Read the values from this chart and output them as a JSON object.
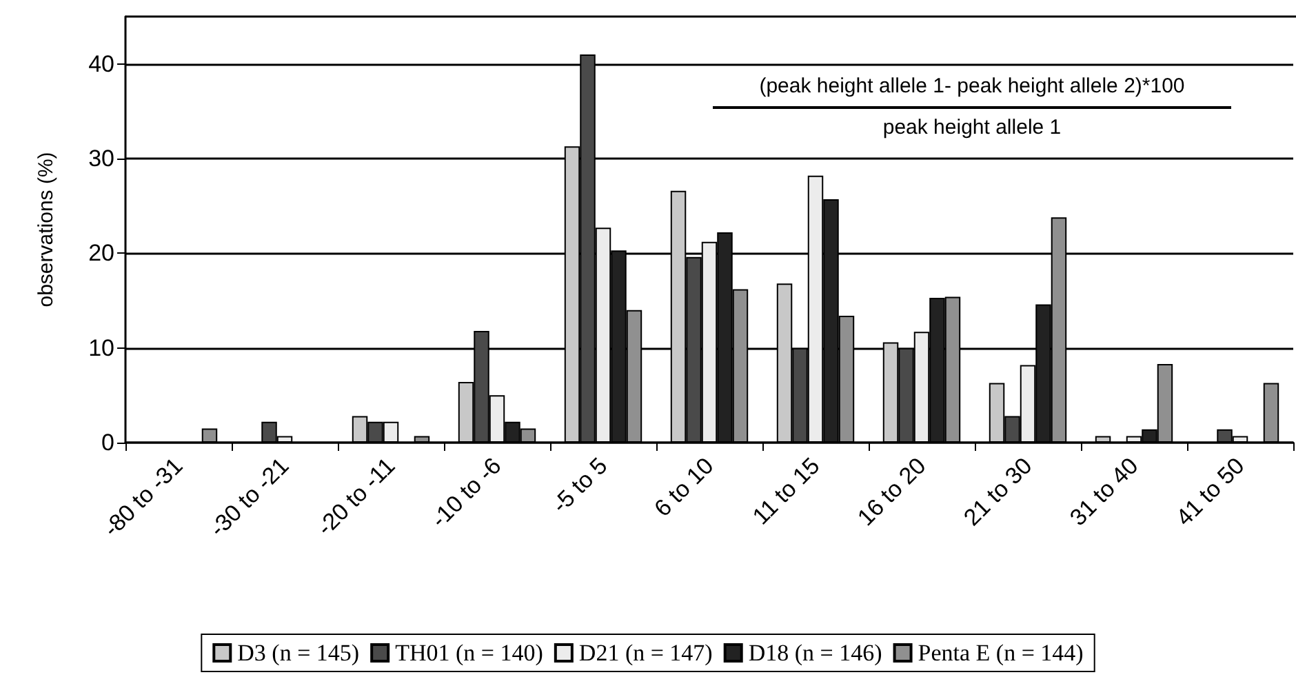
{
  "chart_data": {
    "type": "bar",
    "ylabel": "observations (%)",
    "annotations": [
      "(peak height allele 1- peak height allele 2)*100",
      "peak height allele 1"
    ],
    "categories": [
      "-80 to -31",
      "-30 to -21",
      "-20 to -11",
      "-10 to -6",
      "-5 to 5",
      "6 to 10",
      "11 to 15",
      "16 to 20",
      "21 to 30",
      "31 to 40",
      "41 to 50"
    ],
    "series": [
      {
        "name": "D3 (n = 145)",
        "color": "#c8c8c8",
        "values": [
          0,
          0,
          2.8,
          6.4,
          31.3,
          26.6,
          16.8,
          10.6,
          6.3,
          0.7,
          0
        ]
      },
      {
        "name": "TH01 (n = 140)",
        "color": "#4a4a4a",
        "values": [
          0,
          2.2,
          2.2,
          11.8,
          41,
          19.6,
          10,
          10,
          2.8,
          0,
          1.4
        ]
      },
      {
        "name": "D21 (n = 147)",
        "color": "#ececec",
        "values": [
          0,
          0.7,
          2.2,
          5,
          22.7,
          21.2,
          28.2,
          11.7,
          8.2,
          0.7,
          0.7
        ]
      },
      {
        "name": "D18 (n = 146)",
        "color": "#222222",
        "values": [
          0,
          0,
          0,
          2.2,
          20.3,
          22.2,
          25.7,
          15.3,
          14.6,
          1.4,
          0
        ]
      },
      {
        "name": "Penta E (n = 144)",
        "color": "#909090",
        "values": [
          1.5,
          0,
          0.7,
          1.5,
          14,
          16.2,
          13.4,
          15.4,
          23.8,
          8.3,
          6.3
        ]
      }
    ],
    "ylim": [
      0,
      45
    ],
    "yticks": [
      0,
      10,
      20,
      30,
      40
    ],
    "grid": "y",
    "legend": "bottom"
  }
}
